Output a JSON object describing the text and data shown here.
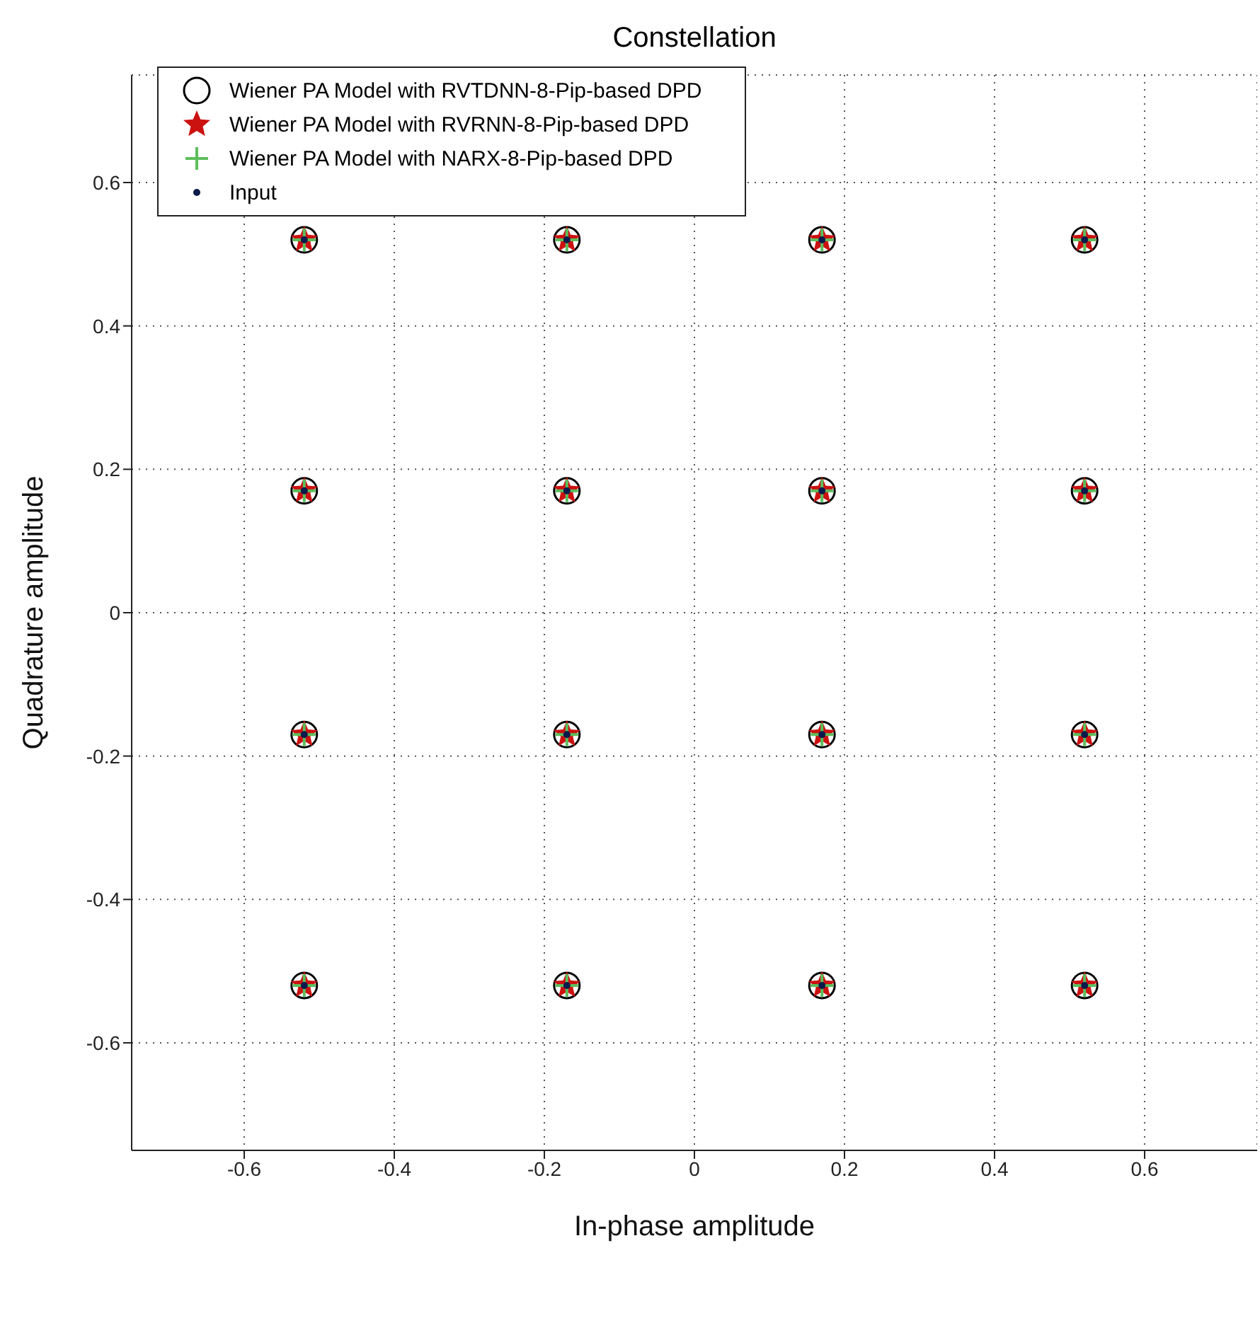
{
  "chart_data": {
    "type": "scatter",
    "title": "Constellation",
    "xlabel": "In-phase amplitude",
    "ylabel": "Quadrature amplitude",
    "x": [
      -0.52,
      -0.17,
      0.17,
      0.52,
      -0.52,
      -0.17,
      0.17,
      0.52,
      -0.52,
      -0.17,
      0.17,
      0.52,
      -0.52,
      -0.17,
      0.17,
      0.52
    ],
    "series": [
      {
        "name": "Wiener PA Model with RVTDNN-8-Pip-based DPD",
        "color": "#000000",
        "marker": "circle",
        "values": [
          0.52,
          0.52,
          0.52,
          0.52,
          0.17,
          0.17,
          0.17,
          0.17,
          -0.17,
          -0.17,
          -0.17,
          -0.17,
          -0.52,
          -0.52,
          -0.52,
          -0.52
        ]
      },
      {
        "name": "Wiener PA Model with RVRNN-8-Pip-based DPD",
        "color": "#cc1111",
        "marker": "star",
        "values": [
          0.52,
          0.52,
          0.52,
          0.52,
          0.17,
          0.17,
          0.17,
          0.17,
          -0.17,
          -0.17,
          -0.17,
          -0.17,
          -0.52,
          -0.52,
          -0.52,
          -0.52
        ]
      },
      {
        "name": "Wiener PA Model with NARX-8-Pip-based DPD",
        "color": "#5cbf5c",
        "marker": "cross",
        "values": [
          0.52,
          0.52,
          0.52,
          0.52,
          0.17,
          0.17,
          0.17,
          0.17,
          -0.17,
          -0.17,
          -0.17,
          -0.17,
          -0.52,
          -0.52,
          -0.52,
          -0.52
        ]
      },
      {
        "name": "Input",
        "color": "#0a1a4a",
        "marker": "dot",
        "values": [
          0.52,
          0.52,
          0.52,
          0.52,
          0.17,
          0.17,
          0.17,
          0.17,
          -0.17,
          -0.17,
          -0.17,
          -0.17,
          -0.52,
          -0.52,
          -0.52,
          -0.52
        ]
      }
    ],
    "xlim": [
      -0.75,
      0.75
    ],
    "xticks": [
      -0.6,
      -0.4,
      -0.2,
      0,
      0.2,
      0.4,
      0.6
    ],
    "ylim": [
      -0.75,
      0.75
    ],
    "yticks": [
      -0.6,
      -0.4,
      -0.2,
      0,
      0.2,
      0.4,
      0.6
    ],
    "grid": true,
    "legend": "top left"
  }
}
